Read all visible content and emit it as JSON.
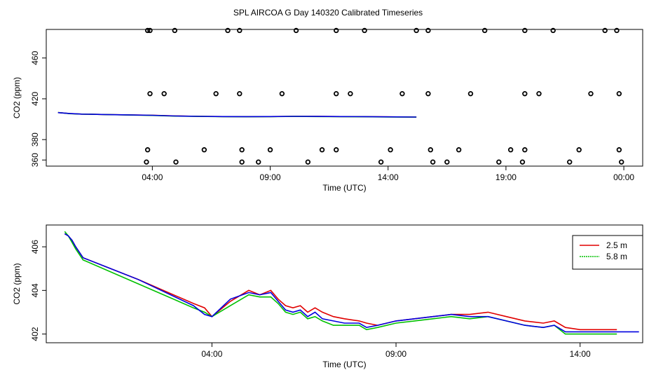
{
  "title": "SPL AIRCOA G  Day 140320  Calibrated Timeseries",
  "colors": {
    "red": "#e00000",
    "green": "#00c000",
    "blue": "#0000e0",
    "black": "#000000"
  },
  "chart_data": [
    {
      "type": "line+scatter",
      "xlabel": "Time (UTC)",
      "ylabel": "CO2 (ppm)",
      "xlim": [
        -0.5,
        24.8
      ],
      "ylim": [
        354,
        488
      ],
      "xticks": [
        {
          "value": 4,
          "label": "04:00"
        },
        {
          "value": 9,
          "label": "09:00"
        },
        {
          "value": 14,
          "label": "14:00"
        },
        {
          "value": 19,
          "label": "19:00"
        },
        {
          "value": 24,
          "label": "00:00"
        }
      ],
      "yticks": [
        {
          "value": 380,
          "label": "380"
        },
        {
          "value": 420,
          "label": "420"
        },
        {
          "value": 460,
          "label": "460"
        },
        {
          "value": 360,
          "label": "360"
        }
      ],
      "series": [
        {
          "color": "red",
          "x": [
            0,
            0.5,
            1,
            2,
            3,
            4,
            5,
            6,
            7,
            8,
            9,
            10,
            11,
            12,
            13,
            14,
            15.2
          ],
          "y": [
            406.5,
            405.5,
            405.0,
            404.6,
            404.2,
            403.9,
            403.2,
            402.8,
            402.6,
            402.5,
            402.6,
            402.8,
            402.7,
            402.6,
            402.5,
            402.3,
            402.1
          ]
        },
        {
          "color": "green",
          "x": [
            0,
            0.5,
            1,
            2,
            3,
            4,
            5,
            6,
            7,
            8,
            9,
            10,
            11,
            12,
            13,
            14,
            15.2
          ],
          "y": [
            406.6,
            405.4,
            405.0,
            404.6,
            404.1,
            403.7,
            403.0,
            402.7,
            402.5,
            402.4,
            402.5,
            402.7,
            402.6,
            402.5,
            402.4,
            402.2,
            402.0
          ]
        },
        {
          "color": "blue",
          "x": [
            0,
            0.5,
            1,
            2,
            3,
            4,
            5,
            6,
            7,
            8,
            9,
            10,
            11,
            12,
            13,
            14,
            15.2
          ],
          "y": [
            406.4,
            405.6,
            405.0,
            404.6,
            404.2,
            403.8,
            403.1,
            402.8,
            402.6,
            402.5,
            402.6,
            402.8,
            402.7,
            402.6,
            402.5,
            402.3,
            402.1
          ]
        }
      ],
      "points": {
        "color": "black",
        "x": [
          3.8,
          3.9,
          4.95,
          7.2,
          7.7,
          10.1,
          11.8,
          13.0,
          15.2,
          15.7,
          18.1,
          19.8,
          21.0,
          23.2,
          23.7,
          3.9,
          4.5,
          6.7,
          7.7,
          9.5,
          11.8,
          12.4,
          14.6,
          15.7,
          17.5,
          19.8,
          20.4,
          22.6,
          23.8,
          3.8,
          6.2,
          7.8,
          9.0,
          11.2,
          11.8,
          14.1,
          15.8,
          17.0,
          19.2,
          19.8,
          22.1,
          23.8,
          3.75,
          5.0,
          7.8,
          8.5,
          10.6,
          13.7,
          15.9,
          16.5,
          18.7,
          19.7,
          21.7,
          23.9
        ],
        "y": [
          487,
          487,
          487,
          487,
          487,
          487,
          487,
          487,
          487,
          487,
          487,
          487,
          487,
          487,
          487,
          425,
          425,
          425,
          425,
          425,
          425,
          425,
          425,
          425,
          425,
          425,
          425,
          425,
          425,
          370,
          370,
          370,
          370,
          370,
          370,
          370,
          370,
          370,
          370,
          370,
          370,
          370,
          358,
          358,
          358,
          358,
          358,
          358,
          358,
          358,
          358,
          358,
          358,
          358
        ]
      }
    },
    {
      "type": "line",
      "xlabel": "Time (UTC)",
      "ylabel": "CO2 (ppm)",
      "xlim": [
        -0.5,
        15.7
      ],
      "ylim": [
        401.6,
        407.0
      ],
      "xticks": [
        {
          "value": 4,
          "label": "04:00"
        },
        {
          "value": 9,
          "label": "09:00"
        },
        {
          "value": 14,
          "label": "14:00"
        }
      ],
      "yticks": [
        {
          "value": 402,
          "label": "402"
        },
        {
          "value": 404,
          "label": "404"
        },
        {
          "value": 406,
          "label": "406"
        }
      ],
      "legend": {
        "position": "top-right",
        "entries": [
          {
            "label": "2.5 m",
            "color": "red"
          },
          {
            "label": "5.8 m",
            "color": "green"
          }
        ]
      },
      "series": [
        {
          "color": "red",
          "x": [
            0,
            0.1,
            0.2,
            0.3,
            0.5,
            2,
            3.5,
            3.8,
            4.0,
            4.5,
            5.0,
            5.3,
            5.6,
            5.8,
            6.0,
            6.2,
            6.4,
            6.6,
            6.8,
            7,
            7.3,
            7.6,
            8,
            8.2,
            8.5,
            9,
            9.5,
            10,
            10.5,
            11,
            11.5,
            12,
            12.5,
            13,
            13.3,
            13.6,
            14,
            14.5,
            15
          ],
          "y": [
            406.6,
            406.5,
            406.3,
            406.0,
            405.5,
            404.5,
            403.4,
            403.2,
            402.8,
            403.5,
            404.0,
            403.8,
            404.0,
            403.6,
            403.3,
            403.2,
            403.3,
            403.0,
            403.2,
            403.0,
            402.8,
            402.7,
            402.6,
            402.5,
            402.4,
            402.6,
            402.7,
            402.8,
            402.9,
            402.9,
            403.0,
            402.8,
            402.6,
            402.5,
            402.6,
            402.3,
            402.2,
            402.2,
            402.2
          ]
        },
        {
          "color": "green",
          "x": [
            0,
            0.1,
            0.2,
            0.3,
            0.5,
            2,
            3.5,
            3.8,
            4.0,
            4.5,
            5.0,
            5.3,
            5.6,
            5.8,
            6.0,
            6.2,
            6.4,
            6.6,
            6.8,
            7,
            7.3,
            7.6,
            8,
            8.2,
            8.5,
            9,
            9.5,
            10,
            10.5,
            11,
            11.5,
            12,
            12.5,
            13,
            13.3,
            13.6,
            14,
            14.5,
            15
          ],
          "y": [
            406.7,
            406.5,
            406.2,
            405.9,
            405.4,
            404.3,
            403.2,
            403.0,
            402.8,
            403.3,
            403.8,
            403.7,
            403.7,
            403.4,
            403.0,
            402.9,
            403.0,
            402.7,
            402.8,
            402.6,
            402.4,
            402.4,
            402.4,
            402.2,
            402.3,
            402.5,
            402.6,
            402.7,
            402.8,
            402.7,
            402.8,
            402.6,
            402.4,
            402.3,
            402.4,
            402.0,
            402.0,
            402.0,
            402.0
          ]
        },
        {
          "color": "blue",
          "x": [
            0,
            0.1,
            0.2,
            0.3,
            0.5,
            2,
            3.5,
            3.8,
            4.0,
            4.5,
            5.0,
            5.3,
            5.6,
            5.8,
            6.0,
            6.2,
            6.4,
            6.6,
            6.8,
            7,
            7.3,
            7.6,
            8,
            8.2,
            8.5,
            9,
            9.5,
            10,
            10.5,
            11,
            11.5,
            12,
            12.5,
            13,
            13.3,
            13.6,
            14,
            14.5,
            15.6
          ],
          "y": [
            406.6,
            406.5,
            406.3,
            406.0,
            405.5,
            404.5,
            403.3,
            402.9,
            402.8,
            403.6,
            403.9,
            403.8,
            403.9,
            403.5,
            403.1,
            403.0,
            403.1,
            402.8,
            403.0,
            402.7,
            402.6,
            402.5,
            402.5,
            402.3,
            402.4,
            402.6,
            402.7,
            402.8,
            402.9,
            402.8,
            402.8,
            402.6,
            402.4,
            402.3,
            402.4,
            402.1,
            402.1,
            402.1,
            402.1
          ]
        }
      ]
    }
  ]
}
